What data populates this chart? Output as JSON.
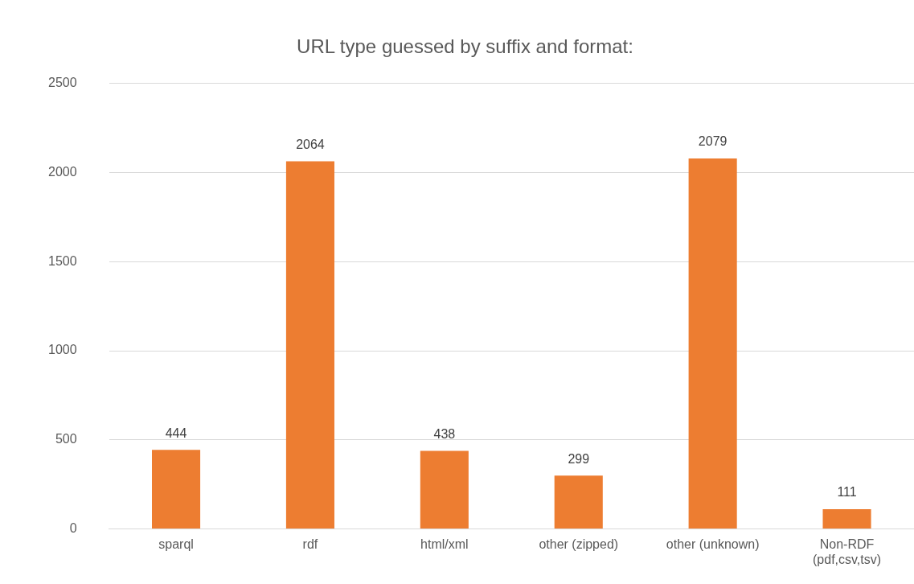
{
  "chart_data": {
    "type": "bar",
    "title": "URL type guessed by suffix and format:",
    "categories": [
      "sparql",
      "rdf",
      "html/xml",
      "other (zipped)",
      "other (unknown)",
      "Non-RDF\n(pdf,csv,tsv)"
    ],
    "values": [
      444,
      2064,
      438,
      299,
      2079,
      111
    ],
    "color": "#ed7d31",
    "ylim": [
      0,
      2500
    ],
    "yticks": [
      0,
      500,
      1000,
      1500,
      2000,
      2500
    ],
    "grid": "y",
    "data_labels": true,
    "legend": false
  }
}
